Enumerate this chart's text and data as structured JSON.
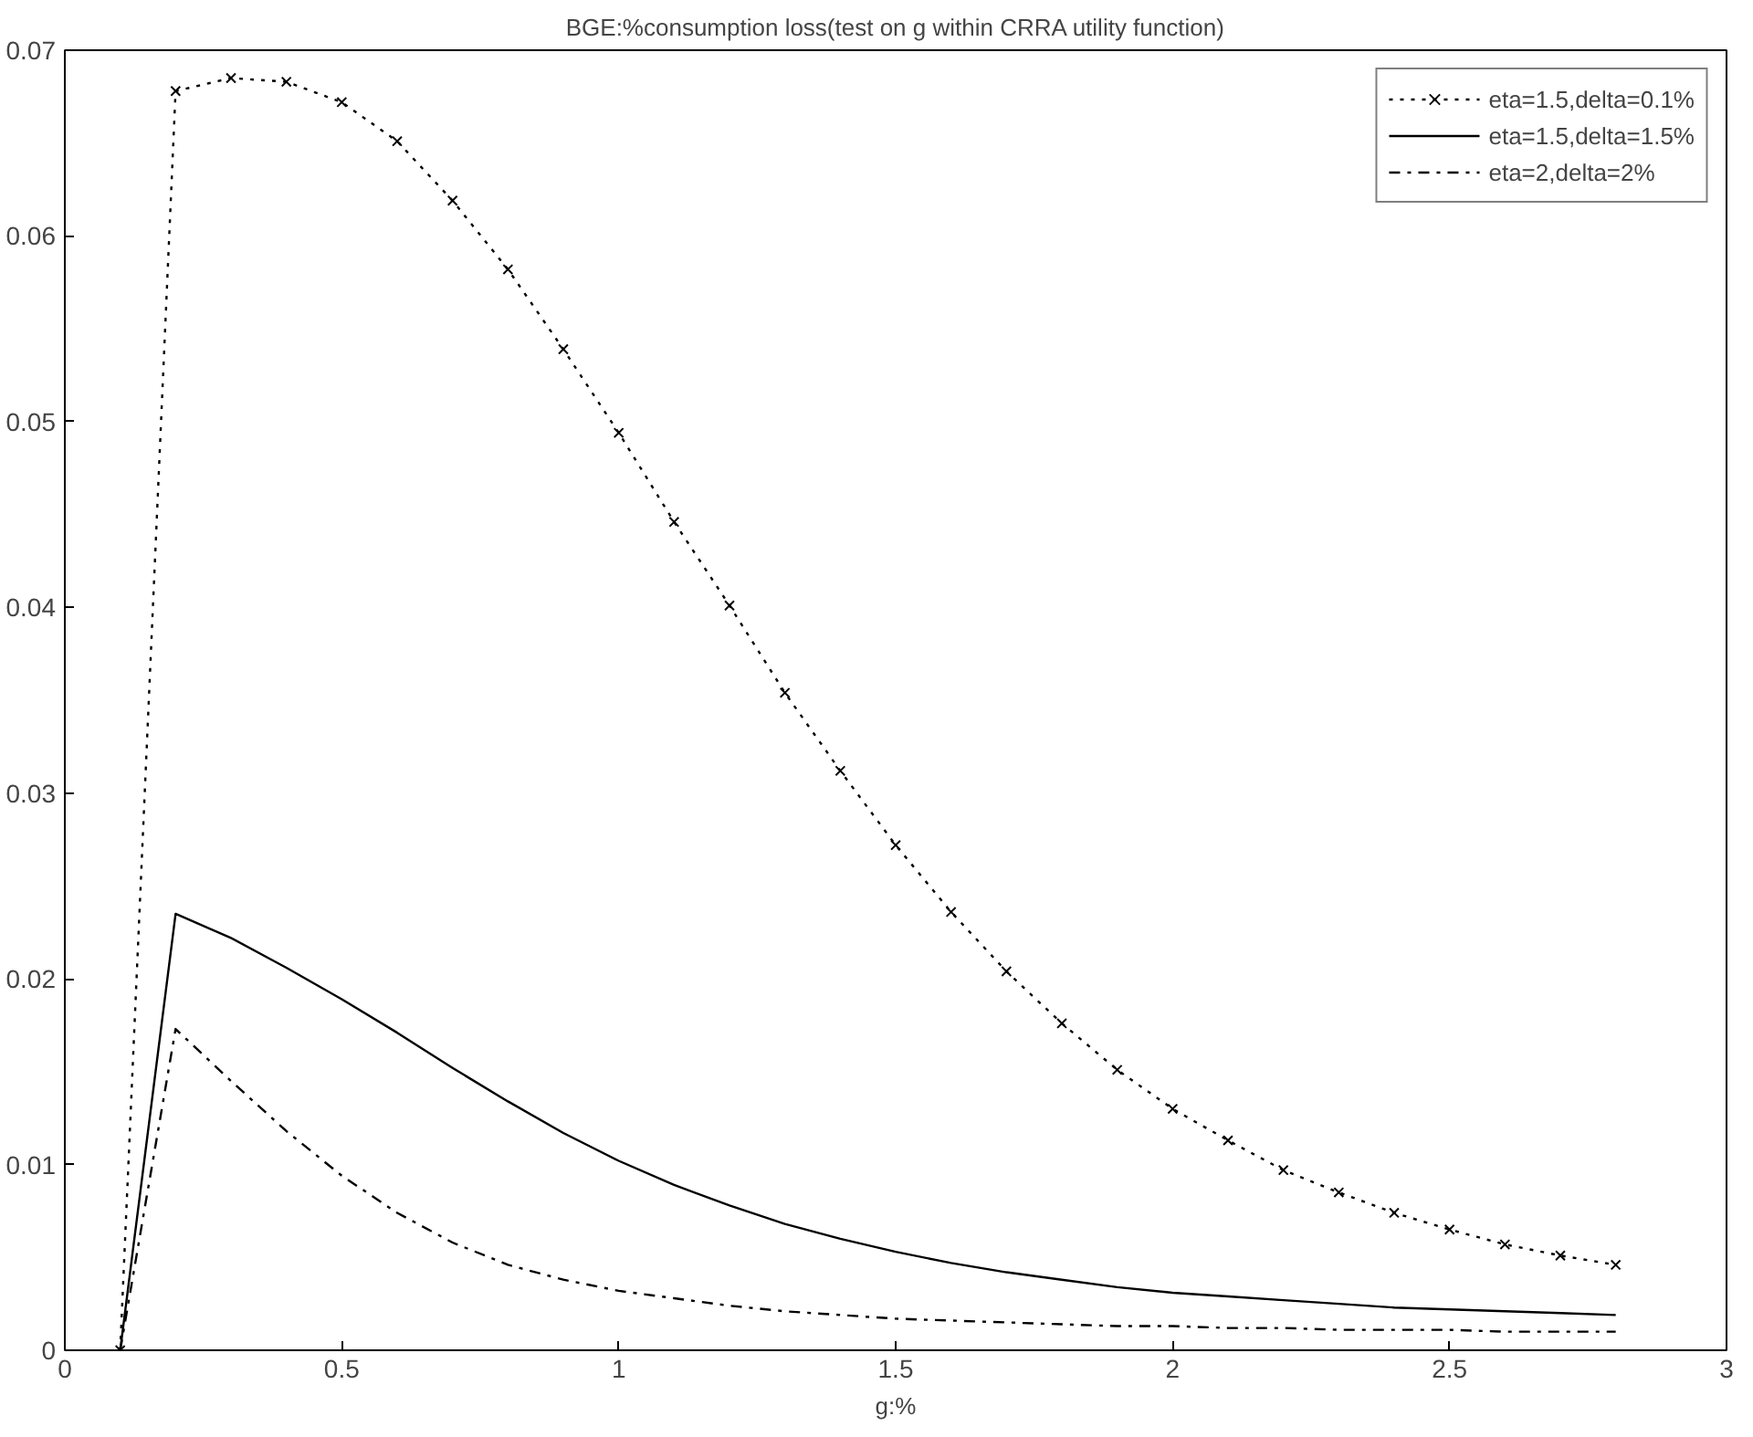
{
  "chart_data": {
    "type": "line",
    "title": "BGE:%consumption loss(test on g within CRRA utility function)",
    "xlabel": "g:%",
    "x": [
      0.1,
      0.2,
      0.3,
      0.4,
      0.5,
      0.6,
      0.7,
      0.8,
      0.9,
      1.0,
      1.1,
      1.2,
      1.3,
      1.4,
      1.5,
      1.6,
      1.7,
      1.8,
      1.9,
      2.0,
      2.1,
      2.2,
      2.3,
      2.4,
      2.5,
      2.6,
      2.7,
      2.8
    ],
    "series": [
      {
        "name": "eta=1.5,delta=0.1%",
        "color": "#000000",
        "marker": "cross",
        "line_style": "dotted",
        "values": [
          0,
          0.0678,
          0.0685,
          0.0683,
          0.0672,
          0.0651,
          0.0619,
          0.0582,
          0.0539,
          0.0494,
          0.0446,
          0.0401,
          0.0354,
          0.0312,
          0.0272,
          0.0236,
          0.0204,
          0.0176,
          0.0151,
          0.013,
          0.0113,
          0.0097,
          0.0085,
          0.0074,
          0.0065,
          0.0057,
          0.0051,
          0.0046
        ]
      },
      {
        "name": "eta=1.5,delta=1.5%",
        "color": "#000000",
        "marker": "none",
        "line_style": "solid",
        "values": [
          0,
          0.0235,
          0.0222,
          0.0206,
          0.0189,
          0.0171,
          0.0152,
          0.0134,
          0.0117,
          0.0102,
          0.0089,
          0.0078,
          0.0068,
          0.006,
          0.0053,
          0.0047,
          0.0042,
          0.0038,
          0.0034,
          0.0031,
          0.0029,
          0.0027,
          0.0025,
          0.0023,
          0.0022,
          0.0021,
          0.002,
          0.0019
        ]
      },
      {
        "name": "eta=2,delta=2%",
        "color": "#000000",
        "marker": "none",
        "line_style": "dashdot",
        "values": [
          0,
          0.0173,
          0.0145,
          0.0118,
          0.0094,
          0.0074,
          0.0058,
          0.0046,
          0.0038,
          0.0032,
          0.0028,
          0.0024,
          0.0021,
          0.0019,
          0.0017,
          0.0016,
          0.0015,
          0.0014,
          0.0013,
          0.0013,
          0.0012,
          0.0012,
          0.0011,
          0.0011,
          0.0011,
          0.001,
          0.001,
          0.001
        ]
      }
    ],
    "xlim": [
      0,
      3
    ],
    "xticks": [
      0,
      0.5,
      1,
      1.5,
      2,
      2.5,
      3
    ],
    "ylim": [
      0,
      0.07
    ],
    "yticks": [
      0,
      0.01,
      0.02,
      0.03,
      0.04,
      0.05,
      0.06,
      0.07
    ],
    "grid": false,
    "legend": "top right"
  }
}
